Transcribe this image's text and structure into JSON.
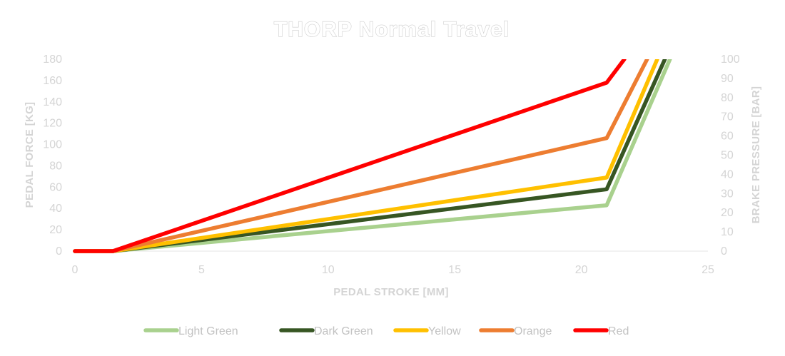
{
  "chart_data": {
    "type": "line",
    "title": "THORP Normal Travel",
    "xlabel": "PEDAL STROKE [MM]",
    "ylabel": "PEDAL FORCE [KG]",
    "y2label": "BRAKE PRESSURE [BAR]",
    "xlim": [
      0,
      25
    ],
    "ylim": [
      0,
      180
    ],
    "y2lim": [
      0,
      100
    ],
    "x_ticks": [
      "0",
      "5",
      "10",
      "15",
      "20",
      "25"
    ],
    "y_ticks": [
      "0",
      "20",
      "40",
      "60",
      "80",
      "100",
      "120",
      "140",
      "160",
      "180"
    ],
    "y2_ticks": [
      "0",
      "10",
      "20",
      "30",
      "40",
      "50",
      "60",
      "70",
      "80",
      "90",
      "100"
    ],
    "grid": false,
    "legend_position": "bottom",
    "series": [
      {
        "name": "Light Green",
        "color": "#a9d18e",
        "x": [
          0,
          1.5,
          21,
          23.5
        ],
        "y": [
          0,
          0,
          43,
          180
        ]
      },
      {
        "name": "Dark Green",
        "color": "#375623",
        "x": [
          0,
          1.5,
          21,
          23.3
        ],
        "y": [
          0,
          0,
          58,
          180
        ]
      },
      {
        "name": "Yellow",
        "color": "#ffc000",
        "x": [
          0,
          1.5,
          21,
          23.0
        ],
        "y": [
          0,
          0,
          69,
          180
        ]
      },
      {
        "name": "Orange",
        "color": "#ed7d31",
        "x": [
          0,
          1.5,
          21,
          22.6
        ],
        "y": [
          0,
          0,
          106,
          180
        ]
      },
      {
        "name": "Red",
        "color": "#ff0000",
        "x": [
          0,
          1.5,
          21,
          21.7
        ],
        "y": [
          0,
          0,
          158,
          180
        ]
      }
    ]
  }
}
